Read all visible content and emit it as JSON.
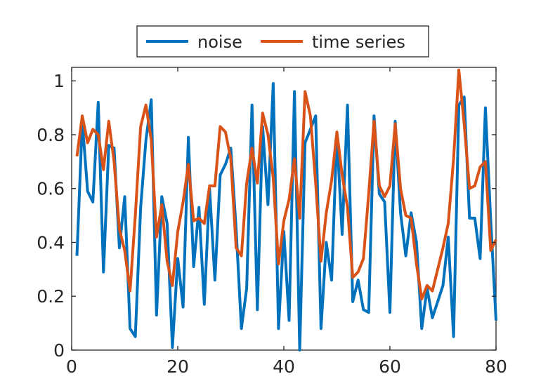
{
  "chart_data": {
    "type": "line",
    "title": "",
    "xlabel": "",
    "ylabel": "",
    "xlim": [
      0,
      80
    ],
    "ylim": [
      0,
      1.05
    ],
    "xticks": [
      0,
      20,
      40,
      60,
      80
    ],
    "yticks": [
      0,
      0.2,
      0.4,
      0.6,
      0.8,
      1
    ],
    "xtick_labels": [
      "0",
      "20",
      "40",
      "60",
      "80"
    ],
    "ytick_labels": [
      "0",
      "0.2",
      "0.4",
      "0.6",
      "0.8",
      "1"
    ],
    "grid": false,
    "legend_position": "top-center",
    "x": [
      1,
      2,
      3,
      4,
      5,
      6,
      7,
      8,
      9,
      10,
      11,
      12,
      13,
      14,
      15,
      16,
      17,
      18,
      19,
      20,
      21,
      22,
      23,
      24,
      25,
      26,
      27,
      28,
      29,
      30,
      31,
      32,
      33,
      34,
      35,
      36,
      37,
      38,
      39,
      40,
      41,
      42,
      43,
      44,
      45,
      46,
      47,
      48,
      49,
      50,
      51,
      52,
      53,
      54,
      55,
      56,
      57,
      58,
      59,
      60,
      61,
      62,
      63,
      64,
      65,
      66,
      67,
      68,
      69,
      70,
      71,
      72,
      73,
      74,
      75,
      76,
      77,
      78,
      79,
      80
    ],
    "series": [
      {
        "name": "noise",
        "color": "#0072BD",
        "values": [
          0.35,
          0.85,
          0.59,
          0.55,
          0.92,
          0.29,
          0.76,
          0.75,
          0.38,
          0.57,
          0.08,
          0.05,
          0.53,
          0.78,
          0.93,
          0.13,
          0.57,
          0.47,
          0.01,
          0.34,
          0.16,
          0.79,
          0.31,
          0.53,
          0.17,
          0.6,
          0.26,
          0.65,
          0.69,
          0.75,
          0.45,
          0.08,
          0.23,
          0.91,
          0.15,
          0.83,
          0.54,
          0.99,
          0.08,
          0.44,
          0.11,
          0.96,
          0.0,
          0.77,
          0.82,
          0.87,
          0.08,
          0.4,
          0.26,
          0.8,
          0.43,
          0.91,
          0.18,
          0.26,
          0.15,
          0.14,
          0.87,
          0.58,
          0.55,
          0.14,
          0.85,
          0.51,
          0.35,
          0.51,
          0.4,
          0.08,
          0.23,
          0.12,
          0.18,
          0.24,
          0.42,
          0.05,
          0.91,
          0.94,
          0.49,
          0.49,
          0.34,
          0.9,
          0.48,
          0.11
        ]
      },
      {
        "name": "time series",
        "color": "#D95319",
        "values": [
          0.72,
          0.87,
          0.77,
          0.82,
          0.8,
          0.67,
          0.85,
          0.7,
          0.45,
          0.37,
          0.22,
          0.5,
          0.83,
          0.91,
          0.78,
          0.42,
          0.54,
          0.33,
          0.24,
          0.44,
          0.55,
          0.69,
          0.48,
          0.49,
          0.47,
          0.61,
          0.61,
          0.83,
          0.81,
          0.71,
          0.38,
          0.35,
          0.62,
          0.75,
          0.62,
          0.88,
          0.8,
          0.64,
          0.32,
          0.48,
          0.56,
          0.71,
          0.49,
          0.96,
          0.87,
          0.62,
          0.33,
          0.51,
          0.63,
          0.81,
          0.65,
          0.53,
          0.27,
          0.29,
          0.34,
          0.58,
          0.85,
          0.61,
          0.57,
          0.61,
          0.84,
          0.6,
          0.5,
          0.49,
          0.32,
          0.19,
          0.24,
          0.22,
          0.3,
          0.38,
          0.47,
          0.71,
          1.04,
          0.84,
          0.6,
          0.61,
          0.68,
          0.7,
          0.37,
          0.41
        ]
      }
    ]
  }
}
